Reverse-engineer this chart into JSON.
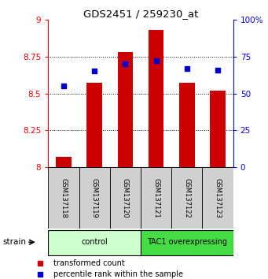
{
  "title": "GDS2451 / 259230_at",
  "samples": [
    "GSM137118",
    "GSM137119",
    "GSM137120",
    "GSM137121",
    "GSM137122",
    "GSM137123"
  ],
  "transformed_counts": [
    8.07,
    8.57,
    8.78,
    8.93,
    8.57,
    8.52
  ],
  "percentile_ranks": [
    55,
    65,
    70,
    72,
    67,
    66
  ],
  "ylim_left": [
    8.0,
    9.0
  ],
  "ylim_right": [
    0,
    100
  ],
  "yticks_left": [
    8.0,
    8.25,
    8.5,
    8.75,
    9.0
  ],
  "yticks_right": [
    0,
    25,
    50,
    75,
    100
  ],
  "ytick_labels_left": [
    "8",
    "8.25",
    "8.5",
    "8.75",
    "9"
  ],
  "ytick_labels_right": [
    "0",
    "25",
    "50",
    "75",
    "100%"
  ],
  "bar_color": "#cc0000",
  "bar_base": 8.0,
  "dot_color": "#0000cc",
  "group_labels": [
    "control",
    "TAC1 overexpressing"
  ],
  "group_ranges": [
    [
      0,
      3
    ],
    [
      3,
      6
    ]
  ],
  "group_colors_light": [
    "#ccffcc",
    "#44dd44"
  ],
  "strain_label": "strain",
  "legend_bar_label": "transformed count",
  "legend_dot_label": "percentile rank within the sample",
  "bg_color": "#ffffff",
  "sample_box_color": "#d0d0d0"
}
